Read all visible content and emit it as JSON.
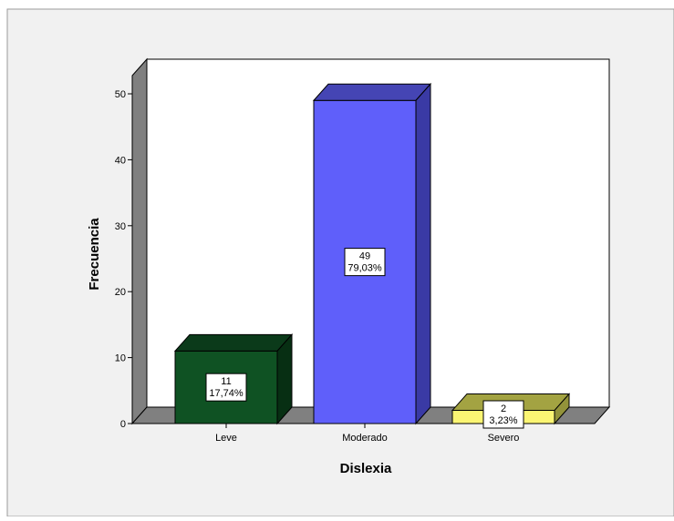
{
  "chart_data": {
    "type": "bar",
    "title": "",
    "xlabel": "Dislexia",
    "ylabel": "Frecuencia",
    "categories": [
      "Leve",
      "Moderado",
      "Severo"
    ],
    "values": [
      11,
      49,
      2
    ],
    "data_labels": [
      {
        "count": "11",
        "percent": "17,74%"
      },
      {
        "count": "49",
        "percent": "79,03%"
      },
      {
        "count": "2",
        "percent": "3,23%"
      }
    ],
    "ylim": [
      0,
      50
    ],
    "yticks": [
      0,
      10,
      20,
      30,
      40,
      50
    ],
    "grid": false,
    "legend": "none",
    "style": "3d",
    "colors": {
      "front": [
        "#0f5223",
        "#5f5ffa",
        "#fbf573"
      ],
      "top": [
        "#0b3a1a",
        "#4545b4",
        "#a3a342"
      ],
      "side": [
        "#072f13",
        "#3a3aa5",
        "#93933a"
      ],
      "plot_background": "#ffffff",
      "panel_background": "#f1f1f1",
      "wall": "#808080"
    }
  }
}
